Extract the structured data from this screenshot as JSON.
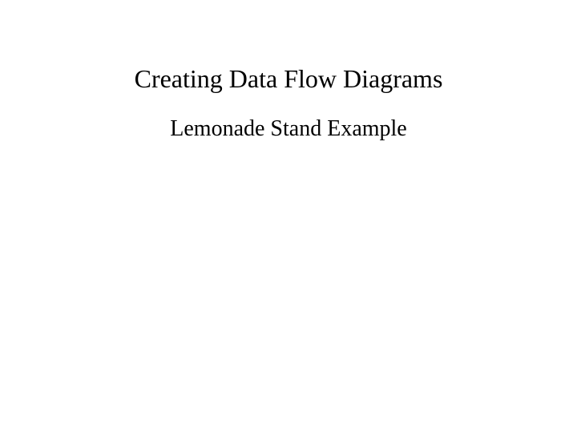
{
  "slide": {
    "title": "Creating Data Flow Diagrams",
    "subtitle": "Lemonade Stand Example",
    "title_fontsize": 32,
    "subtitle_fontsize": 28,
    "title_color": "#000000",
    "subtitle_color": "#000000",
    "background_color": "#ffffff",
    "font_family": "Times New Roman"
  }
}
